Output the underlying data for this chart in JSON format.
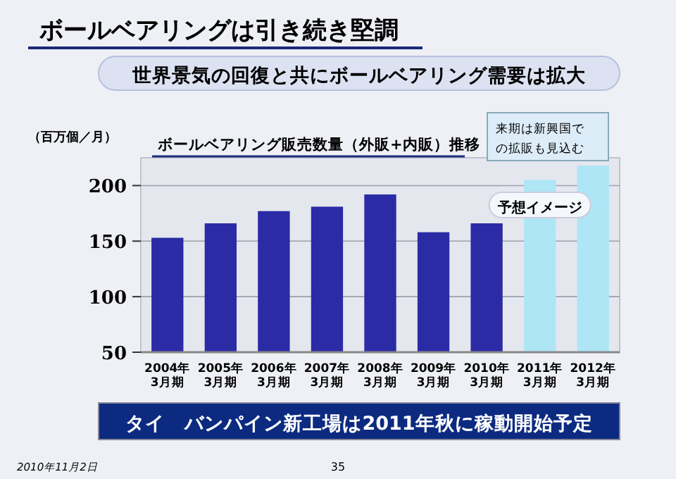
{
  "chart_data": {
    "type": "bar",
    "title": "ボールベアリングは引き続き堅調",
    "subtitle": "世界景気の回復と共にボールベアリング需要は拡大",
    "ylabel": "（百万個／月）",
    "categories": [
      "2004年3月期",
      "2005年3月期",
      "2006年3月期",
      "2007年3月期",
      "2008年3月期",
      "2009年3月期",
      "2010年3月期",
      "2011年3月期",
      "2012年3月期"
    ],
    "values": [
      153,
      166,
      177,
      181,
      192,
      158,
      166,
      205,
      218
    ],
    "colors": [
      "#2b2ba6",
      "#2b2ba6",
      "#2b2ba6",
      "#2b2ba6",
      "#2b2ba6",
      "#2b2ba6",
      "#2b2ba6",
      "#aee6f6",
      "#aee6f6"
    ],
    "ylim": [
      50,
      225
    ],
    "yticks": [
      50,
      100,
      150,
      200
    ],
    "grid": "y",
    "annotations": [
      "ボールベアリング販売数量（外販+内販）推移",
      "来期は新興国での拡販も見込む",
      "予想イメージ",
      "タイ　バンパイン新工場は2011年秋に稼動開始予定",
      "2010年11月2日",
      "35"
    ]
  }
}
